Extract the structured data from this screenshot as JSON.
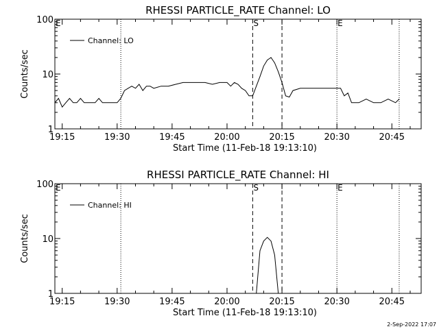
{
  "footer": {
    "timestamp": "2-Sep-2022 17:07"
  },
  "chart_data": [
    {
      "type": "line",
      "title": "RHESSI PARTICLE_RATE Channel: LO",
      "xlabel": "Start Time (11-Feb-18 19:13:10)",
      "ylabel": "Counts/sec",
      "yscale": "log",
      "ylim": [
        1,
        100
      ],
      "yticks": [
        {
          "v": 1,
          "label": "1"
        },
        {
          "v": 10,
          "label": "10"
        },
        {
          "v": 100,
          "label": "100"
        }
      ],
      "xlim": [
        "19:13",
        "20:53"
      ],
      "xticks": [
        "19:15",
        "19:30",
        "19:45",
        "20:00",
        "20:15",
        "20:30",
        "20:45"
      ],
      "legend": {
        "position": "top-left",
        "entries": [
          "Channel: LO"
        ]
      },
      "markers": [
        {
          "time": "19:13",
          "style": "dotted",
          "label": "E"
        },
        {
          "time": "19:31",
          "style": "dotted",
          "label": ""
        },
        {
          "time": "20:07",
          "style": "dashed",
          "label": "S"
        },
        {
          "time": "20:15",
          "style": "dashed",
          "label": ""
        },
        {
          "time": "20:30",
          "style": "dotted",
          "label": "E"
        },
        {
          "time": "20:47",
          "style": "dotted",
          "label": ""
        }
      ],
      "series": [
        {
          "name": "Channel: LO",
          "x": [
            "19:13",
            "19:14",
            "19:15",
            "19:16",
            "19:17",
            "19:18",
            "19:19",
            "19:20",
            "19:21",
            "19:22",
            "19:23",
            "19:24",
            "19:25",
            "19:26",
            "19:27",
            "19:28",
            "19:29",
            "19:30",
            "19:31",
            "19:32",
            "19:33",
            "19:34",
            "19:35",
            "19:36",
            "19:37",
            "19:38",
            "19:39",
            "19:40",
            "19:42",
            "19:44",
            "19:46",
            "19:48",
            "19:50",
            "19:52",
            "19:54",
            "19:56",
            "19:58",
            "20:00",
            "20:01",
            "20:02",
            "20:03",
            "20:04",
            "20:05",
            "20:06",
            "20:07",
            "20:08",
            "20:09",
            "20:10",
            "20:11",
            "20:12",
            "20:13",
            "20:14",
            "20:15",
            "20:16",
            "20:17",
            "20:18",
            "20:20",
            "20:22",
            "20:24",
            "20:26",
            "20:28",
            "20:30",
            "20:31",
            "20:32",
            "20:33",
            "20:34",
            "20:36",
            "20:38",
            "20:40",
            "20:42",
            "20:44",
            "20:46",
            "20:47"
          ],
          "y": [
            3,
            3.6,
            2.5,
            3,
            3.6,
            3,
            3,
            3.6,
            3,
            3,
            3,
            3,
            3.6,
            3,
            3,
            3,
            3,
            3,
            3.6,
            5,
            5.5,
            6,
            5.5,
            6.5,
            5,
            6,
            6,
            5.5,
            6,
            6,
            6.5,
            7,
            7,
            7,
            7,
            6.5,
            7,
            7,
            6,
            7,
            6.5,
            5.5,
            5,
            4,
            4,
            6,
            9,
            14,
            18,
            20,
            16,
            11,
            7,
            4,
            3.8,
            5,
            5.5,
            5.5,
            5.5,
            5.5,
            5.5,
            5.5,
            5.5,
            4,
            4.5,
            3,
            3,
            3.5,
            3,
            3,
            3.5,
            3,
            3.5
          ]
        }
      ]
    },
    {
      "type": "line",
      "title": "RHESSI PARTICLE_RATE Channel: HI",
      "xlabel": "Start Time (11-Feb-18 19:13:10)",
      "ylabel": "Counts/sec",
      "yscale": "log",
      "ylim": [
        1,
        100
      ],
      "yticks": [
        {
          "v": 1,
          "label": "1"
        },
        {
          "v": 10,
          "label": "10"
        },
        {
          "v": 100,
          "label": "100"
        }
      ],
      "xlim": [
        "19:13",
        "20:53"
      ],
      "xticks": [
        "19:15",
        "19:30",
        "19:45",
        "20:00",
        "20:15",
        "20:30",
        "20:45"
      ],
      "legend": {
        "position": "top-left",
        "entries": [
          "Channel: HI"
        ]
      },
      "markers": [
        {
          "time": "19:13",
          "style": "dotted",
          "label": "E"
        },
        {
          "time": "19:31",
          "style": "dotted",
          "label": ""
        },
        {
          "time": "20:07",
          "style": "dashed",
          "label": "S"
        },
        {
          "time": "20:15",
          "style": "dashed",
          "label": ""
        },
        {
          "time": "20:30",
          "style": "dotted",
          "label": "E"
        },
        {
          "time": "20:47",
          "style": "dotted",
          "label": ""
        }
      ],
      "series": [
        {
          "name": "Channel: HI",
          "x": [
            "20:08",
            "20:09",
            "20:10",
            "20:11",
            "20:12",
            "20:13",
            "20:14"
          ],
          "y": [
            1,
            6,
            9,
            10.5,
            9,
            5,
            1
          ]
        }
      ]
    }
  ]
}
